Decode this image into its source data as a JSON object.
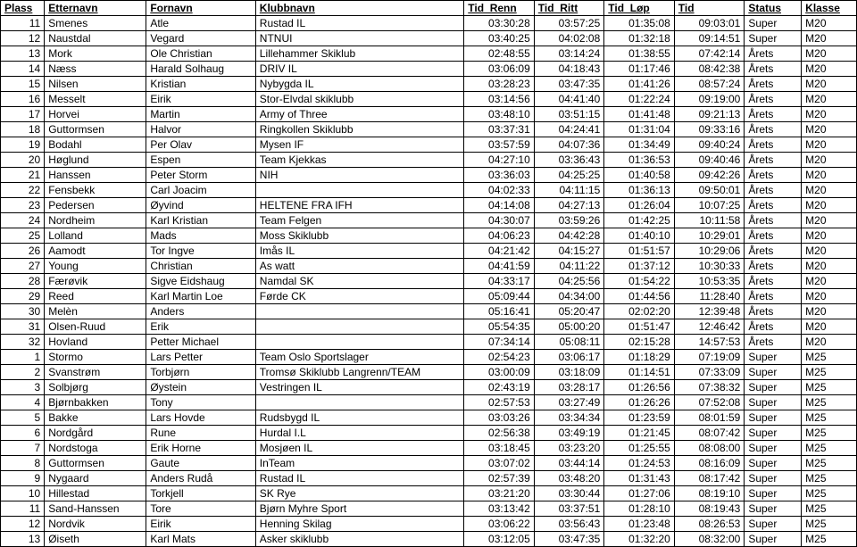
{
  "table": {
    "columns": [
      "Plass",
      "Etternavn",
      "Fornavn",
      "Klubbnavn",
      "Tid_Renn",
      "Tid_Ritt",
      "Tid_Løp",
      "Tid",
      "Status",
      "Klasse"
    ],
    "rows": [
      [
        "11",
        "Smenes",
        "Atle",
        "Rustad IL",
        "03:30:28",
        "03:57:25",
        "01:35:08",
        "09:03:01",
        "Super",
        "M20"
      ],
      [
        "12",
        "Naustdal",
        "Vegard",
        "NTNUI",
        "03:40:25",
        "04:02:08",
        "01:32:18",
        "09:14:51",
        "Super",
        "M20"
      ],
      [
        "13",
        "Mork",
        "Ole Christian",
        "Lillehammer Skiklub",
        "02:48:55",
        "03:14:24",
        "01:38:55",
        "07:42:14",
        "Årets",
        "M20"
      ],
      [
        "14",
        "Næss",
        "Harald Solhaug",
        "DRIV IL",
        "03:06:09",
        "04:18:43",
        "01:17:46",
        "08:42:38",
        "Årets",
        "M20"
      ],
      [
        "15",
        "Nilsen",
        "Kristian",
        "Nybygda IL",
        "03:28:23",
        "03:47:35",
        "01:41:26",
        "08:57:24",
        "Årets",
        "M20"
      ],
      [
        "16",
        "Messelt",
        "Eirik",
        "Stor-Elvdal skiklubb",
        "03:14:56",
        "04:41:40",
        "01:22:24",
        "09:19:00",
        "Årets",
        "M20"
      ],
      [
        "17",
        "Horvei",
        "Martin",
        "Army of Three",
        "03:48:10",
        "03:51:15",
        "01:41:48",
        "09:21:13",
        "Årets",
        "M20"
      ],
      [
        "18",
        "Guttormsen",
        "Halvor",
        "Ringkollen Skiklubb",
        "03:37:31",
        "04:24:41",
        "01:31:04",
        "09:33:16",
        "Årets",
        "M20"
      ],
      [
        "19",
        "Bodahl",
        "Per Olav",
        "Mysen IF",
        "03:57:59",
        "04:07:36",
        "01:34:49",
        "09:40:24",
        "Årets",
        "M20"
      ],
      [
        "20",
        "Høglund",
        "Espen",
        "Team Kjekkas",
        "04:27:10",
        "03:36:43",
        "01:36:53",
        "09:40:46",
        "Årets",
        "M20"
      ],
      [
        "21",
        "Hanssen",
        "Peter Storm",
        "NIH",
        "03:36:03",
        "04:25:25",
        "01:40:58",
        "09:42:26",
        "Årets",
        "M20"
      ],
      [
        "22",
        "Fensbekk",
        "Carl Joacim",
        "",
        "04:02:33",
        "04:11:15",
        "01:36:13",
        "09:50:01",
        "Årets",
        "M20"
      ],
      [
        "23",
        "Pedersen",
        "Øyvind",
        "HELTENE FRA IFH",
        "04:14:08",
        "04:27:13",
        "01:26:04",
        "10:07:25",
        "Årets",
        "M20"
      ],
      [
        "24",
        "Nordheim",
        "Karl Kristian",
        "Team Felgen",
        "04:30:07",
        "03:59:26",
        "01:42:25",
        "10:11:58",
        "Årets",
        "M20"
      ],
      [
        "25",
        "Lolland",
        "Mads",
        "Moss Skiklubb",
        "04:06:23",
        "04:42:28",
        "01:40:10",
        "10:29:01",
        "Årets",
        "M20"
      ],
      [
        "26",
        "Aamodt",
        "Tor Ingve",
        "Imås IL",
        "04:21:42",
        "04:15:27",
        "01:51:57",
        "10:29:06",
        "Årets",
        "M20"
      ],
      [
        "27",
        "Young",
        "Christian",
        "As watt",
        "04:41:59",
        "04:11:22",
        "01:37:12",
        "10:30:33",
        "Årets",
        "M20"
      ],
      [
        "28",
        "Færøvik",
        "Sigve Eidshaug",
        "Namdal SK",
        "04:33:17",
        "04:25:56",
        "01:54:22",
        "10:53:35",
        "Årets",
        "M20"
      ],
      [
        "29",
        "Reed",
        "Karl Martin Loe",
        "Førde CK",
        "05:09:44",
        "04:34:00",
        "01:44:56",
        "11:28:40",
        "Årets",
        "M20"
      ],
      [
        "30",
        "Melèn",
        "Anders",
        "",
        "05:16:41",
        "05:20:47",
        "02:02:20",
        "12:39:48",
        "Årets",
        "M20"
      ],
      [
        "31",
        "Olsen-Ruud",
        "Erik",
        "",
        "05:54:35",
        "05:00:20",
        "01:51:47",
        "12:46:42",
        "Årets",
        "M20"
      ],
      [
        "32",
        "Hovland",
        "Petter Michael",
        "",
        "07:34:14",
        "05:08:11",
        "02:15:28",
        "14:57:53",
        "Årets",
        "M20"
      ],
      [
        "1",
        "Stormo",
        "Lars Petter",
        "Team Oslo Sportslager",
        "02:54:23",
        "03:06:17",
        "01:18:29",
        "07:19:09",
        "Super",
        "M25"
      ],
      [
        "2",
        "Svanstrøm",
        "Torbjørn",
        "Tromsø Skiklubb Langrenn/TEAM",
        "03:00:09",
        "03:18:09",
        "01:14:51",
        "07:33:09",
        "Super",
        "M25"
      ],
      [
        "3",
        "Solbjørg",
        "Øystein",
        "Vestringen IL",
        "02:43:19",
        "03:28:17",
        "01:26:56",
        "07:38:32",
        "Super",
        "M25"
      ],
      [
        "4",
        "Bjørnbakken",
        "Tony",
        "",
        "02:57:53",
        "03:27:49",
        "01:26:26",
        "07:52:08",
        "Super",
        "M25"
      ],
      [
        "5",
        "Bakke",
        "Lars Hovde",
        "Rudsbygd IL",
        "03:03:26",
        "03:34:34",
        "01:23:59",
        "08:01:59",
        "Super",
        "M25"
      ],
      [
        "6",
        "Nordgård",
        "Rune",
        "Hurdal I.L",
        "02:56:38",
        "03:49:19",
        "01:21:45",
        "08:07:42",
        "Super",
        "M25"
      ],
      [
        "7",
        "Nordstoga",
        "Erik Horne",
        "Mosjøen IL",
        "03:18:45",
        "03:23:20",
        "01:25:55",
        "08:08:00",
        "Super",
        "M25"
      ],
      [
        "8",
        "Guttormsen",
        "Gaute",
        "InTeam",
        "03:07:02",
        "03:44:14",
        "01:24:53",
        "08:16:09",
        "Super",
        "M25"
      ],
      [
        "9",
        "Nygaard",
        "Anders Rudå",
        "Rustad IL",
        "02:57:39",
        "03:48:20",
        "01:31:43",
        "08:17:42",
        "Super",
        "M25"
      ],
      [
        "10",
        "Hillestad",
        "Torkjell",
        "SK Rye",
        "03:21:20",
        "03:30:44",
        "01:27:06",
        "08:19:10",
        "Super",
        "M25"
      ],
      [
        "11",
        "Sand-Hanssen",
        "Tore",
        "Bjørn Myhre Sport",
        "03:13:42",
        "03:37:51",
        "01:28:10",
        "08:19:43",
        "Super",
        "M25"
      ],
      [
        "12",
        "Nordvik",
        "Eirik",
        "Henning Skilag",
        "03:06:22",
        "03:56:43",
        "01:23:48",
        "08:26:53",
        "Super",
        "M25"
      ],
      [
        "13",
        "Øiseth",
        "Karl Mats",
        "Asker skiklubb",
        "03:12:05",
        "03:47:35",
        "01:32:20",
        "08:32:00",
        "Super",
        "M25"
      ]
    ]
  }
}
